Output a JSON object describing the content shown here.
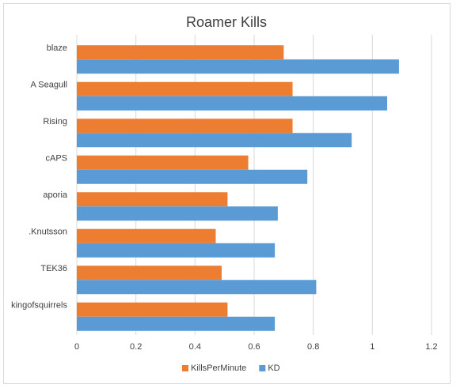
{
  "chart_data": {
    "type": "bar",
    "orientation": "horizontal",
    "title": "Roamer Kills",
    "categories": [
      "blaze",
      "A Seagull",
      "Rising",
      "cAPS",
      "aporia",
      ".Knutsson",
      "TEK36",
      "kingofsquirrels"
    ],
    "series": [
      {
        "name": "KillsPerMinute",
        "color": "#ed7d31",
        "values": [
          0.7,
          0.73,
          0.73,
          0.58,
          0.51,
          0.47,
          0.49,
          0.51
        ]
      },
      {
        "name": "KD",
        "color": "#5b9bd5",
        "values": [
          1.09,
          1.05,
          0.93,
          0.78,
          0.68,
          0.67,
          0.81,
          0.67
        ]
      }
    ],
    "xlim": [
      0,
      1.2
    ],
    "xticks": [
      0,
      0.2,
      0.4,
      0.6,
      0.8,
      1,
      1.2
    ],
    "grid": true,
    "legend": "bottom"
  }
}
